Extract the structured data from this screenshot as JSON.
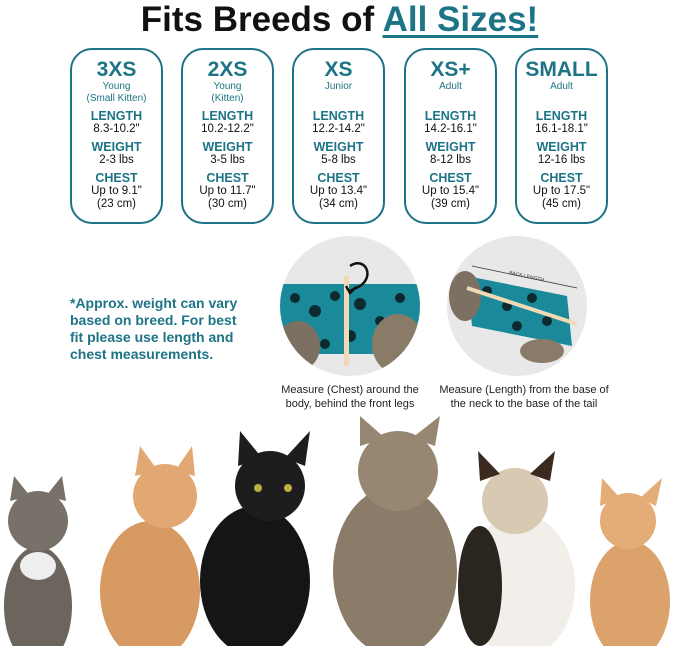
{
  "title": {
    "prefix": "Fits Breeds of ",
    "accent": "All Sizes!"
  },
  "colors": {
    "accent": "#1d7486"
  },
  "sizes": [
    {
      "size": "3XS",
      "desc1": "Young",
      "desc2": "(Small Kitten)",
      "length": "8.3-10.2\"",
      "weight": "2-3 lbs",
      "chest": "Up to 9.1\"",
      "chest_cm": "(23 cm)"
    },
    {
      "size": "2XS",
      "desc1": "Young",
      "desc2": "(Kitten)",
      "length": "10.2-12.2\"",
      "weight": "3-5 lbs",
      "chest": "Up to 11.7\"",
      "chest_cm": "(30 cm)"
    },
    {
      "size": "XS",
      "desc1": "Junior",
      "desc2": "",
      "length": "12.2-14.2\"",
      "weight": "5-8 lbs",
      "chest": "Up to 13.4\"",
      "chest_cm": "(34 cm)"
    },
    {
      "size": "XS+",
      "desc1": "Adult",
      "desc2": "",
      "length": "14.2-16.1\"",
      "weight": "8-12 lbs",
      "chest": "Up to 15.4\"",
      "chest_cm": "(39 cm)"
    },
    {
      "size": "SMALL",
      "desc1": "Adult",
      "desc2": "",
      "length": "16.1-18.1\"",
      "weight": "12-16 lbs",
      "chest": "Up to 17.5\"",
      "chest_cm": "(45 cm)"
    }
  ],
  "labels": {
    "length": "LENGTH",
    "weight": "WEIGHT",
    "chest": "CHEST"
  },
  "note": "*Approx. weight can vary based on breed. For best fit please use length and chest measurements.",
  "measure": {
    "chest_caption": "Measure (Chest) around the body, behind the front legs",
    "length_caption": "Measure (Length) from the base of the neck to the base of the tail",
    "back_length_label": "BACK LENGTH"
  }
}
